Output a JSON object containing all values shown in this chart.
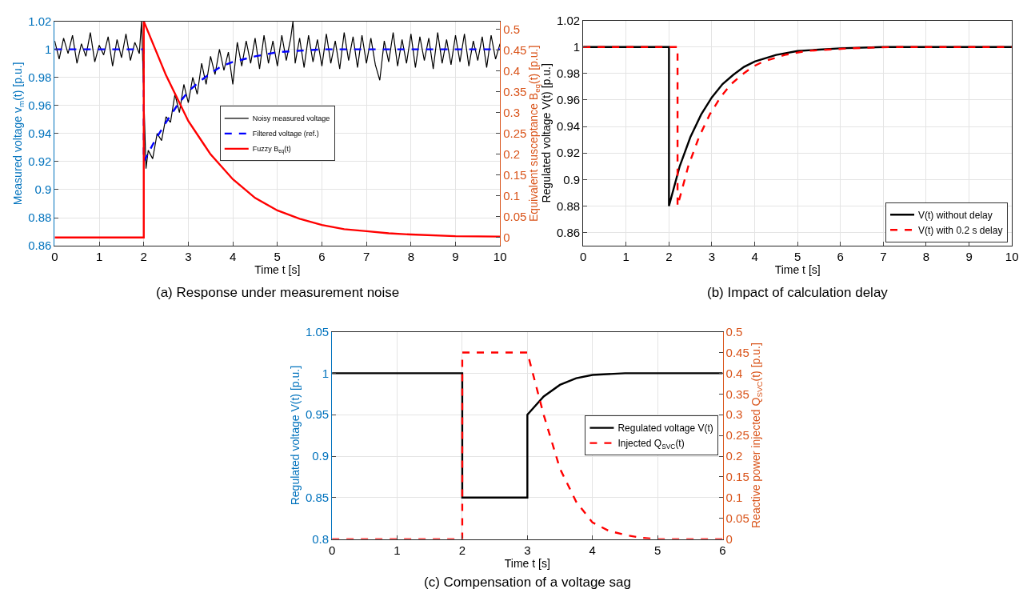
{
  "chart_data": [
    {
      "type": "line",
      "title": "(a) Response under measurement noise",
      "xlabel": "Time t [s]",
      "ylabel": "Measured voltage v$_{m}$(t) [p.u.]",
      "y2label": "Equivalent susceptance B$_{eq}$(t) [p.u.]",
      "xlim": [
        0,
        10
      ],
      "xticks": [
        0,
        1,
        2,
        3,
        4,
        5,
        6,
        7,
        8,
        9,
        10
      ],
      "ylim": [
        0.86,
        1.02
      ],
      "yticks": [
        0.86,
        0.88,
        0.9,
        0.92,
        0.94,
        0.96,
        0.98,
        1,
        1.02
      ],
      "y2lim": [
        -0.02,
        0.52
      ],
      "y2ticks": [
        0,
        0.05,
        0.1,
        0.15,
        0.2,
        0.25,
        0.3,
        0.35,
        0.4,
        0.45,
        0.5
      ],
      "grid": true,
      "legend": "center",
      "series": [
        {
          "name": "Noisy measured voltage",
          "color": "#000000",
          "line_style": "solid",
          "x": [
            0,
            0.1,
            0.2,
            0.3,
            0.4,
            0.5,
            0.6,
            0.7,
            0.8,
            0.9,
            1.0,
            1.1,
            1.2,
            1.3,
            1.4,
            1.5,
            1.6,
            1.7,
            1.8,
            1.9,
            1.95,
            2.05,
            2.1,
            2.2,
            2.3,
            2.4,
            2.5,
            2.6,
            2.7,
            2.8,
            2.9,
            3.0,
            3.1,
            3.2,
            3.3,
            3.4,
            3.5,
            3.6,
            3.7,
            3.8,
            3.9,
            4.0,
            4.1,
            4.2,
            4.3,
            4.4,
            4.5,
            4.6,
            4.7,
            4.8,
            4.9,
            5.0,
            5.1,
            5.2,
            5.3,
            5.35,
            5.4,
            5.5,
            5.6,
            5.7,
            5.8,
            5.9,
            6.0,
            6.1,
            6.2,
            6.3,
            6.4,
            6.5,
            6.6,
            6.7,
            6.8,
            6.9,
            7.0,
            7.1,
            7.2,
            7.3,
            7.4,
            7.5,
            7.6,
            7.7,
            7.8,
            7.9,
            8.0,
            8.1,
            8.2,
            8.3,
            8.4,
            8.5,
            8.6,
            8.7,
            8.8,
            8.9,
            9.0,
            9.1,
            9.2,
            9.3,
            9.4,
            9.5,
            9.6,
            9.7,
            9.8,
            9.9,
            10.0
          ],
          "values": [
            1.006,
            0.993,
            1.008,
            0.997,
            1.01,
            0.99,
            1.004,
            0.995,
            1.012,
            0.991,
            1.003,
            0.996,
            1.009,
            0.988,
            1.007,
            0.994,
            1.011,
            0.992,
            1.005,
            0.997,
            1.02,
            0.915,
            0.928,
            0.922,
            0.94,
            0.935,
            0.952,
            0.948,
            0.968,
            0.955,
            0.975,
            0.962,
            0.98,
            0.968,
            0.99,
            0.975,
            0.995,
            0.982,
            1.0,
            0.985,
            0.998,
            0.975,
            1.005,
            0.988,
            1.006,
            0.99,
            1.008,
            0.986,
            1.01,
            0.99,
            1.006,
            0.988,
            1.01,
            0.992,
            1.008,
            1.02,
            0.99,
            1.008,
            0.987,
            1.01,
            0.991,
            1.007,
            0.988,
            1.011,
            0.99,
            1.006,
            0.986,
            1.012,
            0.992,
            1.009,
            0.987,
            1.01,
            0.99,
            1.008,
            0.989,
            0.978,
            1.006,
            0.991,
            1.012,
            0.988,
            1.007,
            0.99,
            1.011,
            0.987,
            1.009,
            0.992,
            1.008,
            0.986,
            1.012,
            0.99,
            1.007,
            0.989,
            1.01,
            0.991,
            1.011,
            0.988,
            1.006,
            0.992,
            1.009,
            0.987,
            1.01,
            0.993,
            1.004
          ]
        },
        {
          "name": "Filtered voltage (ref.)",
          "color": "#0000ff",
          "line_style": "dashed",
          "x": [
            0,
            2,
            2,
            2.25,
            2.5,
            2.75,
            3,
            3.25,
            3.5,
            3.75,
            4,
            4.5,
            5,
            5.5,
            6,
            7,
            8,
            9,
            10
          ],
          "values": [
            1,
            1,
            0.92,
            0.935,
            0.948,
            0.96,
            0.97,
            0.977,
            0.983,
            0.988,
            0.991,
            0.995,
            0.998,
            0.999,
            1,
            1,
            1,
            1,
            1
          ]
        },
        {
          "name": "Fuzzy B$_{eq}$(t)",
          "color": "#ff0000",
          "line_style": "solid",
          "axis": "y2",
          "x": [
            0,
            2,
            2,
            2.5,
            3,
            3.5,
            4,
            4.5,
            5,
            5.5,
            6,
            6.5,
            7,
            7.5,
            8,
            9,
            10
          ],
          "values": [
            0,
            0,
            0.52,
            0.39,
            0.28,
            0.2,
            0.14,
            0.095,
            0.065,
            0.045,
            0.03,
            0.02,
            0.015,
            0.01,
            0.007,
            0.003,
            0.002
          ]
        }
      ]
    },
    {
      "type": "line",
      "title": "(b) Impact of calculation delay",
      "xlabel": "Time t [s]",
      "ylabel": "Regulated voltage V(t) [p.u.]",
      "xlim": [
        0,
        10
      ],
      "xticks": [
        0,
        1,
        2,
        3,
        4,
        5,
        6,
        7,
        8,
        9,
        10
      ],
      "ylim": [
        0.85,
        1.02
      ],
      "yticks": [
        0.86,
        0.88,
        0.9,
        0.92,
        0.94,
        0.96,
        0.98,
        1,
        1.02
      ],
      "grid": true,
      "legend": "bottom right",
      "series": [
        {
          "name": "V(t) without delay",
          "color": "#000000",
          "line_style": "solid",
          "x": [
            0,
            2,
            2,
            2.25,
            2.5,
            2.75,
            3,
            3.25,
            3.5,
            3.75,
            4,
            4.5,
            5,
            5.5,
            6,
            7,
            8,
            9,
            10
          ],
          "values": [
            1,
            1,
            0.88,
            0.91,
            0.932,
            0.949,
            0.962,
            0.972,
            0.979,
            0.985,
            0.989,
            0.994,
            0.997,
            0.998,
            0.999,
            1,
            1,
            1,
            1
          ]
        },
        {
          "name": "V(t) with 0.2 s delay",
          "color": "#ff0000",
          "line_style": "dashed",
          "x": [
            0,
            2.2,
            2.2,
            2.45,
            2.7,
            2.95,
            3.2,
            3.45,
            3.7,
            3.95,
            4.2,
            4.7,
            5.2,
            5.7,
            6.2,
            7.2,
            8,
            9,
            10
          ],
          "values": [
            1,
            1,
            0.88,
            0.91,
            0.932,
            0.949,
            0.962,
            0.972,
            0.979,
            0.985,
            0.989,
            0.994,
            0.997,
            0.998,
            0.999,
            1,
            1,
            1,
            1
          ]
        }
      ]
    },
    {
      "type": "line",
      "title": "(c) Compensation of a voltage sag",
      "xlabel": "Time t [s]",
      "ylabel": "Regulated voltage V(t) [p.u.]",
      "y2label": "Reactive power injected Q$_{SVC}$(t) [p.u.]",
      "xlim": [
        0,
        6
      ],
      "xticks": [
        0,
        1,
        2,
        3,
        4,
        5,
        6
      ],
      "ylim": [
        0.8,
        1.05
      ],
      "yticks": [
        0.8,
        0.85,
        0.9,
        0.95,
        1,
        1.05
      ],
      "y2lim": [
        0,
        0.5
      ],
      "y2ticks": [
        0,
        0.05,
        0.1,
        0.15,
        0.2,
        0.25,
        0.3,
        0.35,
        0.4,
        0.45,
        0.5
      ],
      "grid": true,
      "legend": "right",
      "series": [
        {
          "name": "Regulated voltage V(t)",
          "color": "#000000",
          "line_style": "solid",
          "x": [
            0,
            2,
            2,
            3,
            3,
            3.25,
            3.5,
            3.75,
            4,
            4.5,
            5,
            6
          ],
          "values": [
            1,
            1,
            0.85,
            0.85,
            0.95,
            0.972,
            0.986,
            0.994,
            0.998,
            1,
            1,
            1
          ]
        },
        {
          "name": "Injected Q$_{SVC}$(t)",
          "color": "#ff0000",
          "line_style": "dashed",
          "axis": "y2",
          "x": [
            0,
            2,
            2,
            3,
            3.25,
            3.5,
            3.75,
            4,
            4.25,
            4.5,
            4.75,
            5,
            6
          ],
          "values": [
            0,
            0,
            0.45,
            0.45,
            0.3,
            0.17,
            0.09,
            0.04,
            0.02,
            0.01,
            0.003,
            0,
            0
          ]
        }
      ]
    }
  ]
}
